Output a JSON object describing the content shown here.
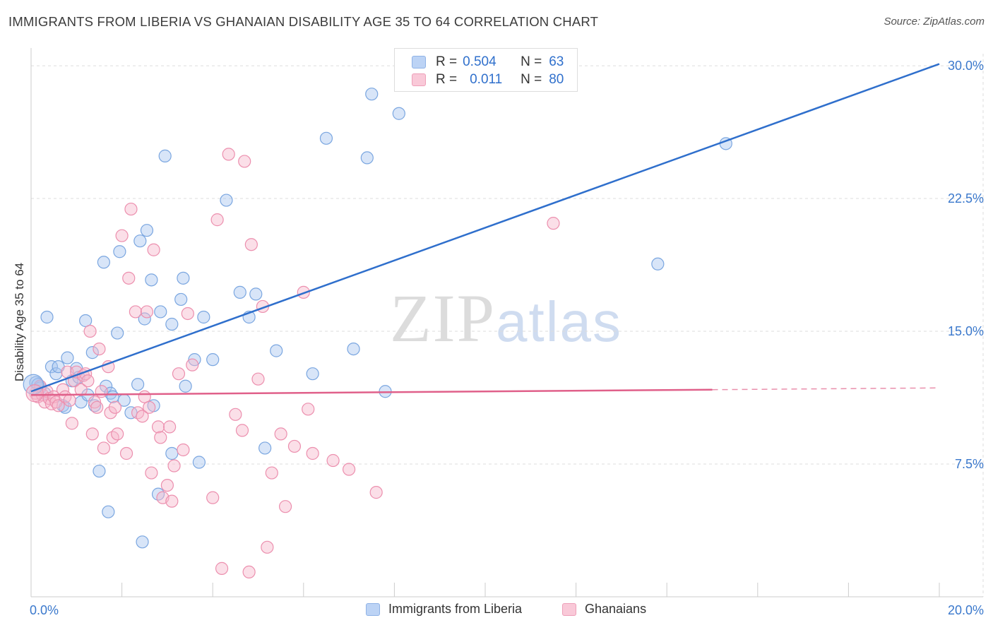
{
  "title": "IMMIGRANTS FROM LIBERIA VS GHANAIAN DISABILITY AGE 35 TO 64 CORRELATION CHART",
  "source": "Source: ZipAtlas.com",
  "watermark": {
    "zip": "ZIP",
    "atlas": "atlas"
  },
  "legend": {
    "rows": [
      {
        "r_label": "R =",
        "r_value": "0.504",
        "n_label": "N =",
        "n_value": "63"
      },
      {
        "r_label": "R =",
        "r_value": "0.011",
        "n_label": "N =",
        "n_value": "80"
      }
    ]
  },
  "colors": {
    "blue_fill": "#a8c6f0",
    "blue_stroke": "#7aa6e0",
    "blue_line": "#2f6fcc",
    "pink_fill": "#f6b8cc",
    "pink_stroke": "#ec8fae",
    "pink_line": "#e0608a",
    "grid": "#dddddd",
    "tick_label": "#3a78cc"
  },
  "chart_data": {
    "type": "scatter",
    "title": "IMMIGRANTS FROM LIBERIA VS GHANAIAN DISABILITY AGE 35 TO 64 CORRELATION CHART",
    "xlabel": "",
    "ylabel": "Disability Age 35 to 64",
    "xlim": [
      0,
      20
    ],
    "ylim": [
      0,
      31
    ],
    "x_tick_labels": [
      "0.0%",
      "20.0%"
    ],
    "y_ticks": [
      7.5,
      15.0,
      22.5,
      30.0
    ],
    "y_tick_labels": [
      "7.5%",
      "15.0%",
      "22.5%",
      "30.0%"
    ],
    "grid": true,
    "legend_position": "top-center",
    "series": [
      {
        "name": "Immigrants from Liberia",
        "color": "#a8c6f0",
        "trend": {
          "x": [
            0,
            20
          ],
          "y": [
            11.6,
            30.1
          ]
        },
        "points": [
          [
            0.1,
            12.1
          ],
          [
            0.15,
            12.0
          ],
          [
            0.2,
            11.8
          ],
          [
            0.3,
            11.5
          ],
          [
            0.35,
            15.8
          ],
          [
            0.45,
            13.0
          ],
          [
            0.55,
            12.6
          ],
          [
            0.6,
            13.0
          ],
          [
            0.7,
            10.8
          ],
          [
            0.75,
            10.7
          ],
          [
            0.8,
            13.5
          ],
          [
            0.9,
            12.2
          ],
          [
            1.0,
            12.9
          ],
          [
            1.05,
            12.4
          ],
          [
            1.1,
            11.0
          ],
          [
            1.2,
            15.6
          ],
          [
            1.25,
            11.4
          ],
          [
            1.35,
            13.8
          ],
          [
            1.4,
            10.8
          ],
          [
            1.5,
            7.1
          ],
          [
            1.6,
            18.9
          ],
          [
            1.65,
            11.9
          ],
          [
            1.7,
            4.8
          ],
          [
            1.75,
            11.5
          ],
          [
            1.8,
            11.3
          ],
          [
            1.9,
            14.9
          ],
          [
            1.95,
            19.5
          ],
          [
            2.05,
            11.1
          ],
          [
            2.2,
            10.4
          ],
          [
            2.35,
            12.0
          ],
          [
            2.4,
            20.1
          ],
          [
            2.45,
            3.1
          ],
          [
            2.5,
            15.7
          ],
          [
            2.55,
            20.7
          ],
          [
            2.65,
            17.9
          ],
          [
            2.7,
            10.8
          ],
          [
            2.8,
            5.8
          ],
          [
            2.85,
            16.1
          ],
          [
            2.95,
            24.9
          ],
          [
            3.1,
            15.4
          ],
          [
            3.1,
            8.1
          ],
          [
            3.3,
            16.8
          ],
          [
            3.35,
            18.0
          ],
          [
            3.4,
            11.9
          ],
          [
            3.6,
            13.4
          ],
          [
            3.7,
            7.6
          ],
          [
            3.8,
            15.8
          ],
          [
            4.0,
            13.4
          ],
          [
            4.3,
            22.4
          ],
          [
            4.6,
            17.2
          ],
          [
            4.8,
            15.8
          ],
          [
            4.95,
            17.1
          ],
          [
            5.15,
            8.4
          ],
          [
            5.4,
            13.9
          ],
          [
            6.2,
            12.6
          ],
          [
            6.5,
            25.9
          ],
          [
            7.1,
            14.0
          ],
          [
            7.4,
            24.8
          ],
          [
            7.5,
            28.4
          ],
          [
            7.8,
            11.6
          ],
          [
            8.1,
            27.3
          ],
          [
            13.8,
            18.8
          ],
          [
            15.3,
            25.6
          ]
        ]
      },
      {
        "name": "Ghanaians",
        "color": "#f6b8cc",
        "trend": {
          "x": [
            0,
            15
          ],
          "y": [
            11.4,
            11.7
          ]
        },
        "trend_dashed_to": {
          "x": 20,
          "y": 11.8
        },
        "points": [
          [
            0.1,
            11.5
          ],
          [
            0.15,
            11.3
          ],
          [
            0.2,
            11.9
          ],
          [
            0.25,
            11.4
          ],
          [
            0.3,
            11.0
          ],
          [
            0.35,
            11.6
          ],
          [
            0.4,
            11.2
          ],
          [
            0.45,
            10.9
          ],
          [
            0.5,
            11.3
          ],
          [
            0.55,
            11.0
          ],
          [
            0.6,
            10.8
          ],
          [
            0.7,
            11.7
          ],
          [
            0.75,
            11.3
          ],
          [
            0.8,
            12.7
          ],
          [
            0.85,
            11.1
          ],
          [
            0.9,
            9.8
          ],
          [
            0.95,
            12.2
          ],
          [
            1.0,
            12.7
          ],
          [
            1.1,
            11.7
          ],
          [
            1.15,
            12.5
          ],
          [
            1.2,
            12.6
          ],
          [
            1.25,
            12.2
          ],
          [
            1.3,
            15.0
          ],
          [
            1.35,
            9.2
          ],
          [
            1.4,
            11.0
          ],
          [
            1.45,
            10.7
          ],
          [
            1.5,
            14.0
          ],
          [
            1.55,
            11.6
          ],
          [
            1.6,
            8.4
          ],
          [
            1.7,
            13.0
          ],
          [
            1.75,
            10.4
          ],
          [
            1.8,
            9.0
          ],
          [
            1.85,
            10.7
          ],
          [
            1.9,
            9.2
          ],
          [
            2.0,
            20.4
          ],
          [
            2.1,
            8.1
          ],
          [
            2.15,
            18.0
          ],
          [
            2.2,
            21.9
          ],
          [
            2.3,
            16.1
          ],
          [
            2.35,
            10.4
          ],
          [
            2.45,
            10.2
          ],
          [
            2.5,
            11.3
          ],
          [
            2.55,
            16.1
          ],
          [
            2.6,
            10.7
          ],
          [
            2.65,
            7.0
          ],
          [
            2.7,
            19.6
          ],
          [
            2.8,
            9.6
          ],
          [
            2.85,
            9.0
          ],
          [
            2.9,
            5.6
          ],
          [
            3.0,
            6.3
          ],
          [
            3.05,
            9.6
          ],
          [
            3.1,
            5.4
          ],
          [
            3.15,
            7.4
          ],
          [
            3.25,
            12.6
          ],
          [
            3.35,
            8.3
          ],
          [
            3.45,
            16.0
          ],
          [
            3.55,
            13.1
          ],
          [
            4.0,
            5.6
          ],
          [
            4.1,
            21.3
          ],
          [
            4.2,
            1.6
          ],
          [
            4.35,
            25.0
          ],
          [
            4.5,
            10.3
          ],
          [
            4.65,
            9.4
          ],
          [
            4.7,
            24.6
          ],
          [
            4.8,
            1.4
          ],
          [
            4.85,
            19.9
          ],
          [
            5.0,
            12.3
          ],
          [
            5.1,
            16.4
          ],
          [
            5.2,
            2.8
          ],
          [
            5.3,
            7.0
          ],
          [
            5.5,
            9.2
          ],
          [
            5.6,
            5.1
          ],
          [
            5.8,
            8.5
          ],
          [
            6.0,
            17.2
          ],
          [
            6.1,
            10.6
          ],
          [
            6.2,
            8.1
          ],
          [
            6.65,
            7.7
          ],
          [
            7.0,
            7.2
          ],
          [
            7.6,
            5.9
          ],
          [
            11.5,
            21.1
          ]
        ]
      }
    ]
  }
}
